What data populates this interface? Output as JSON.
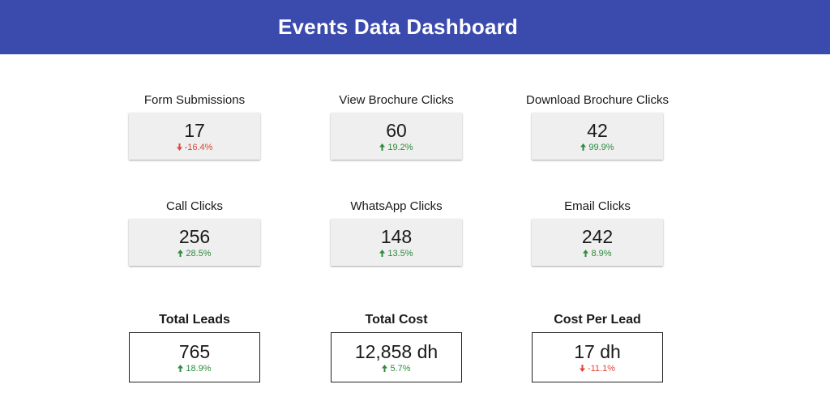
{
  "header": {
    "title": "Events Data Dashboard"
  },
  "colors": {
    "header_bg": "#3a4aad",
    "positive": "#2e8b3d",
    "negative": "#e0453a",
    "card_bg": "#efefef"
  },
  "metrics": [
    {
      "label": "Form Submissions",
      "value": "17",
      "change": "-16.4%",
      "direction": "down",
      "arrow_icon": "arrow-down-icon"
    },
    {
      "label": "View Brochure Clicks",
      "value": "60",
      "change": "19.2%",
      "direction": "up",
      "arrow_icon": "arrow-up-icon"
    },
    {
      "label": "Download Brochure Clicks",
      "value": "42",
      "change": "99.9%",
      "direction": "up",
      "arrow_icon": "arrow-up-icon"
    },
    {
      "label": "Call Clicks",
      "value": "256",
      "change": "28.5%",
      "direction": "up",
      "arrow_icon": "arrow-up-icon"
    },
    {
      "label": "WhatsApp Clicks",
      "value": "148",
      "change": "13.5%",
      "direction": "up",
      "arrow_icon": "arrow-up-icon"
    },
    {
      "label": "Email Clicks",
      "value": "242",
      "change": "8.9%",
      "direction": "up",
      "arrow_icon": "arrow-up-icon"
    }
  ],
  "totals": [
    {
      "label": "Total Leads",
      "value": "765",
      "change": "18.9%",
      "direction": "up",
      "arrow_icon": "arrow-up-icon"
    },
    {
      "label": "Total Cost",
      "value": "12,858 dh",
      "change": "5.7%",
      "direction": "up",
      "arrow_icon": "arrow-up-icon"
    },
    {
      "label": "Cost Per Lead",
      "value": "17 dh",
      "change": "-11.1%",
      "direction": "down",
      "arrow_icon": "arrow-down-icon"
    }
  ]
}
